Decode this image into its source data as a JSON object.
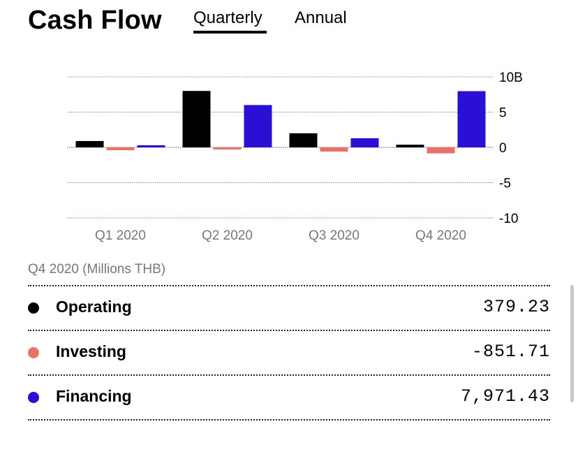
{
  "header": {
    "title": "Cash Flow",
    "tabs": [
      {
        "label": "Quarterly",
        "active": true
      },
      {
        "label": "Annual",
        "active": false
      }
    ]
  },
  "chart_data": {
    "type": "bar",
    "categories": [
      "Q1 2020",
      "Q2 2020",
      "Q3 2020",
      "Q4 2020"
    ],
    "series": [
      {
        "name": "Operating",
        "color": "#000000",
        "values": [
          0.9,
          8.0,
          2.0,
          0.379
        ]
      },
      {
        "name": "Investing",
        "color": "#e8726b",
        "values": [
          -0.4,
          -0.3,
          -0.6,
          -0.852
        ]
      },
      {
        "name": "Financing",
        "color": "#2a10d4",
        "values": [
          0.3,
          6.0,
          1.3,
          7.971
        ]
      }
    ],
    "ylim": [
      -10,
      10
    ],
    "yticks": [
      "10B",
      "5",
      "0",
      "-5",
      "-10"
    ],
    "ytick_values": [
      10,
      5,
      0,
      -5,
      -10
    ],
    "grid": true
  },
  "summary": {
    "period_label": "Q4 2020 (Millions THB)",
    "rows": [
      {
        "label": "Operating",
        "value": "379.23",
        "color": "#000000"
      },
      {
        "label": "Investing",
        "value": "-851.71",
        "color": "#e8726b"
      },
      {
        "label": "Financing",
        "value": "7,971.43",
        "color": "#2a10d4"
      }
    ]
  }
}
